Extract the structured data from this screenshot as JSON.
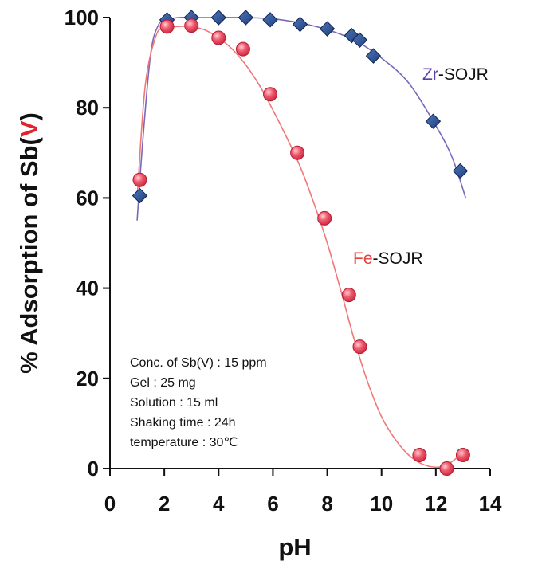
{
  "chart_data": {
    "type": "scatter",
    "title": "",
    "xlabel": "pH",
    "ylabel": {
      "prefix": "% Adsorption of Sb(",
      "highlight": "V",
      "suffix": ")"
    },
    "xlim": [
      0,
      14
    ],
    "ylim": [
      0,
      100
    ],
    "xticks": [
      "0",
      "2",
      "4",
      "6",
      "8",
      "10",
      "12",
      "14"
    ],
    "yticks": [
      "0",
      "20",
      "40",
      "60",
      "80",
      "100"
    ],
    "grid": false,
    "series": [
      {
        "name": "Zr-SOJR",
        "label_metal": "Zr",
        "label_rest": "-SOJR",
        "marker": "diamond",
        "marker_color": "#1f3f7f",
        "line_color": "#7b68b8",
        "label_metal_color": "#5b3fa6",
        "x": [
          1.1,
          2.1,
          3.0,
          4.0,
          5.0,
          5.9,
          7.0,
          8.0,
          8.9,
          9.2,
          9.7,
          11.9,
          12.9
        ],
        "y": [
          60.5,
          99.5,
          100,
          100,
          100,
          99.5,
          98.5,
          97.5,
          96,
          95,
          91.5,
          77,
          66
        ],
        "curve": {
          "x": [
            1.0,
            1.2,
            1.5,
            1.8,
            2.1,
            2.5,
            3.0,
            4.0,
            5.0,
            6.0,
            7.0,
            8.0,
            9.0,
            10.0,
            11.0,
            12.0,
            12.6,
            13.1
          ],
          "y": [
            55,
            72,
            92,
            98.5,
            99.5,
            100,
            100,
            100,
            100,
            99.7,
            98.8,
            97.3,
            95,
            91,
            85.5,
            76,
            69,
            60
          ]
        }
      },
      {
        "name": "Fe-SOJR",
        "label_metal": "Fe",
        "label_rest": "-SOJR",
        "marker": "circle",
        "marker_color": "#f05a6e",
        "line_color": "#f07878",
        "label_metal_color": "#e8413c",
        "x": [
          1.1,
          2.1,
          3.0,
          4.0,
          4.9,
          5.9,
          6.9,
          7.9,
          8.8,
          9.2,
          11.4,
          12.4,
          13.0
        ],
        "y": [
          64,
          98,
          98.2,
          95.5,
          93,
          83,
          70,
          55.5,
          38.5,
          27,
          3,
          0,
          3
        ],
        "curve": {
          "x": [
            1.0,
            1.3,
            1.7,
            2.0,
            2.5,
            3.0,
            3.5,
            4.0,
            4.5,
            5.0,
            5.5,
            6.0,
            6.5,
            7.0,
            7.5,
            8.0,
            8.5,
            9.0,
            9.5,
            10.0,
            10.5,
            11.0,
            11.5,
            12.0,
            12.4,
            12.8,
            13.1
          ],
          "y": [
            60,
            85,
            96,
            97.5,
            98,
            98,
            97.2,
            95.5,
            93,
            89.5,
            85,
            79.5,
            73.5,
            67,
            59,
            50,
            39.5,
            28.5,
            19,
            11.5,
            6.5,
            3,
            1,
            0.3,
            0.8,
            2.5,
            4
          ]
        }
      }
    ],
    "conditions": [
      "Conc. of Sb(V) : 15 ppm",
      "Gel : 25 mg",
      "Solution : 15 ml",
      "Shaking time : 24h",
      "temperature : 30℃"
    ],
    "colors": {
      "axis": "#111111",
      "ylabel_highlight": "#e3232b"
    }
  }
}
